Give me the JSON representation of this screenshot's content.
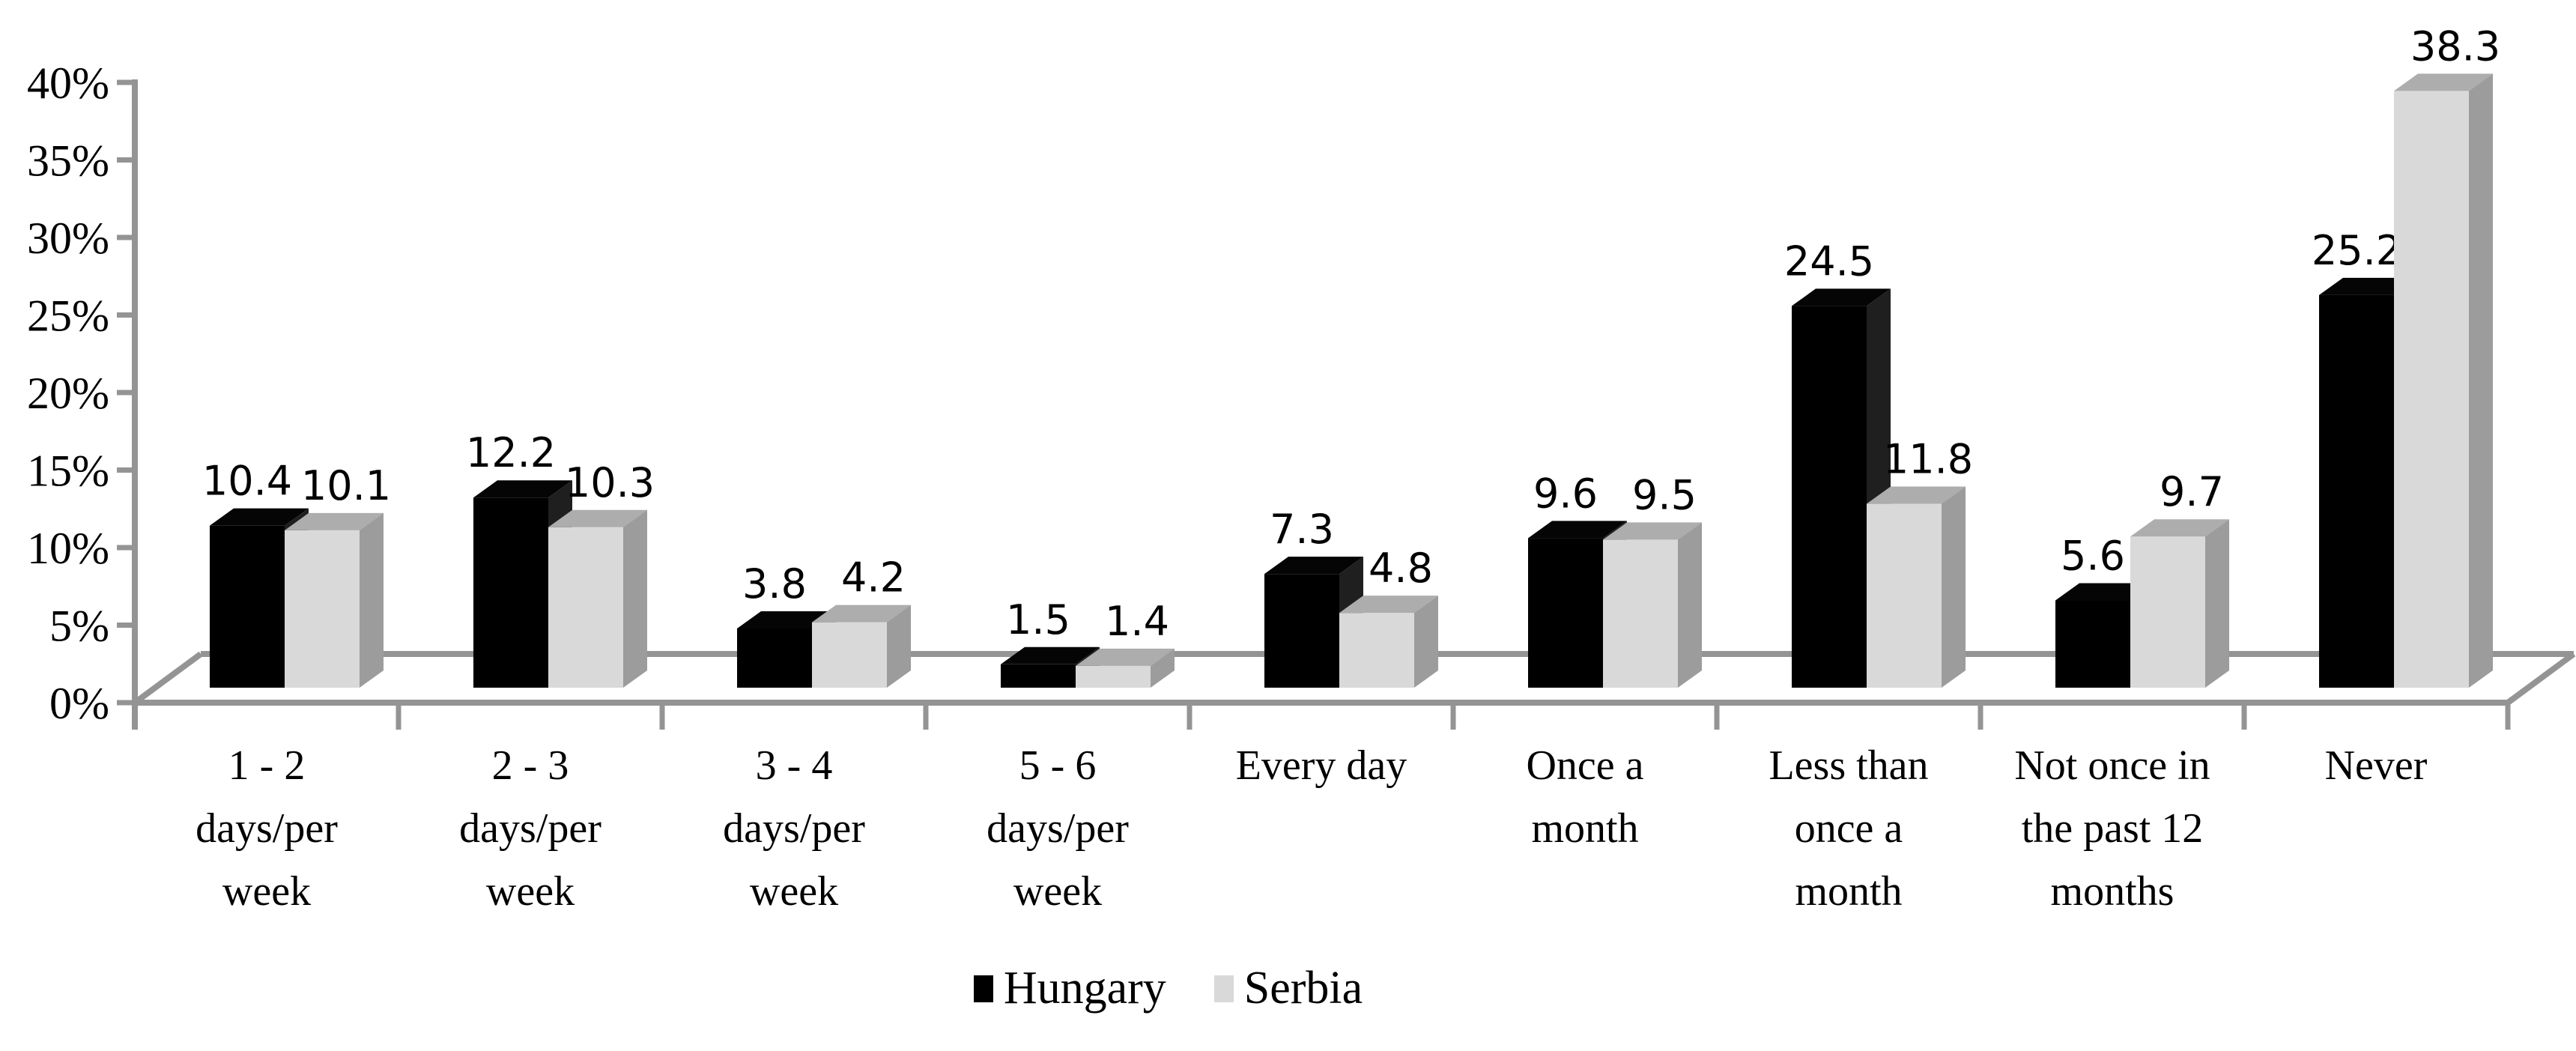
{
  "chart_data": {
    "type": "bar",
    "effect": "3d-clustered-column",
    "title": "",
    "xlabel": "",
    "ylabel": "",
    "categories": [
      "1 - 2 days/per week",
      "2 - 3 days/per week",
      "3 - 4 days/per week",
      "5 - 6 days/per week",
      "Every day",
      "Once a month",
      "Less than once a month",
      "Not once in the past 12 months",
      "Never"
    ],
    "category_lines": [
      [
        "1 - 2",
        "days/per",
        "week"
      ],
      [
        "2 - 3",
        "days/per",
        "week"
      ],
      [
        "3 - 4",
        "days/per",
        "week"
      ],
      [
        "5 - 6",
        "days/per",
        "week"
      ],
      [
        "Every day"
      ],
      [
        "Once a",
        "month"
      ],
      [
        "Less than",
        "once a",
        "month"
      ],
      [
        "Not once in",
        "the past 12",
        "months"
      ],
      [
        "Never"
      ]
    ],
    "series": [
      {
        "name": "Hungary",
        "color": "#000000",
        "top_color": "#050505",
        "side_color": "#1f1f1f",
        "values": [
          10.4,
          12.2,
          3.8,
          1.5,
          7.3,
          9.6,
          24.5,
          5.6,
          25.2
        ]
      },
      {
        "name": "Serbia",
        "color": "#d9d9d9",
        "top_color": "#adadad",
        "side_color": "#9c9c9c",
        "values": [
          10.1,
          10.3,
          4.2,
          1.4,
          4.8,
          9.5,
          11.8,
          9.7,
          38.3
        ]
      }
    ],
    "data_labels": true,
    "ylim": [
      0,
      40
    ],
    "ytick_values": [
      0,
      5,
      10,
      15,
      20,
      25,
      30,
      35,
      40
    ],
    "ytick_labels": [
      "0%",
      "5%",
      "10%",
      "15%",
      "20%",
      "25%",
      "30%",
      "35%",
      "40%"
    ],
    "grid": false,
    "legend_position": "bottom",
    "axis_color": "#949494"
  },
  "legend": {
    "items": [
      {
        "label": "Hungary",
        "color": "#000000"
      },
      {
        "label": "Serbia",
        "color": "#d9d9d9"
      }
    ]
  }
}
